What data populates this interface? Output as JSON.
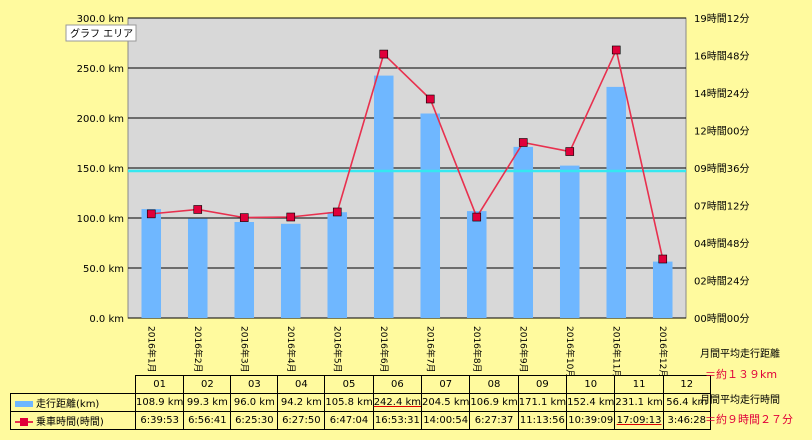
{
  "chart_data": {
    "type": "bar+line",
    "legend_area_label": "グラフ エリア",
    "categories": [
      "2016年1月",
      "2016年2月",
      "2016年3月",
      "2016年4月",
      "2016年5月",
      "2016年6月",
      "2016年7月",
      "2016年8月",
      "2016年9月",
      "2016年10月",
      "2016年11月",
      "2016年12月"
    ],
    "series": [
      {
        "name": "走行距離(km)",
        "kind": "bar",
        "axis": "left",
        "values": [
          108.9,
          99.3,
          96.0,
          94.2,
          105.8,
          242.4,
          204.5,
          106.9,
          171.1,
          152.4,
          231.1,
          56.4
        ]
      },
      {
        "name": "乗車時間(時間)",
        "kind": "line",
        "axis": "right",
        "values_minutes": [
          399.9,
          416.7,
          385.5,
          387.8,
          407.1,
          1013.5,
          840.9,
          387.6,
          673.9,
          639.2,
          1029.2,
          226.5
        ]
      }
    ],
    "left_axis": {
      "min": 0,
      "max": 300,
      "ticks": [
        "0.0 km",
        "50.0 km",
        "100.0 km",
        "150.0 km",
        "200.0 km",
        "250.0 km",
        "300.0 km"
      ]
    },
    "right_axis": {
      "min_minutes": 0,
      "max_minutes": 1152,
      "ticks": [
        "00時間00分",
        "02時間24分",
        "04時間48分",
        "07時間12分",
        "09時間36分",
        "12時間00分",
        "14時間24分",
        "16時間48分",
        "19時間12分"
      ]
    },
    "reference_line_km": 147,
    "grid": true,
    "colors": {
      "bar": "#6fb7ff",
      "line": "#e8304e",
      "marker": "#e0003a",
      "plot_bg": "#d8d8d8",
      "ref_line": "#35e8f0"
    }
  },
  "table": {
    "months": [
      "01",
      "02",
      "03",
      "04",
      "05",
      "06",
      "07",
      "08",
      "09",
      "10",
      "11",
      "12"
    ],
    "distance_label": "走行距離(km)",
    "distance": [
      "108.9 km",
      "99.3 km",
      "96.0 km",
      "94.2 km",
      "105.8 km",
      "242.4 km",
      "204.5 km",
      "106.9 km",
      "171.1 km",
      "152.4 km",
      "231.1 km",
      "56.4 km"
    ],
    "time_label": "乗車時間(時間)",
    "time": [
      "6:39:53",
      "6:56:41",
      "6:25:30",
      "6:27:50",
      "6:47:04",
      "16:53:31",
      "14:00:54",
      "6:27:37",
      "11:13:56",
      "10:39:09",
      "17:09:13",
      "3:46:28"
    ]
  },
  "notes": {
    "avg_distance_label": "月間平均走行距離",
    "avg_distance_value": "＝約１３９km",
    "avg_time_label": "月間平均走行時間",
    "avg_time_value": "＝約９時間２７分"
  }
}
